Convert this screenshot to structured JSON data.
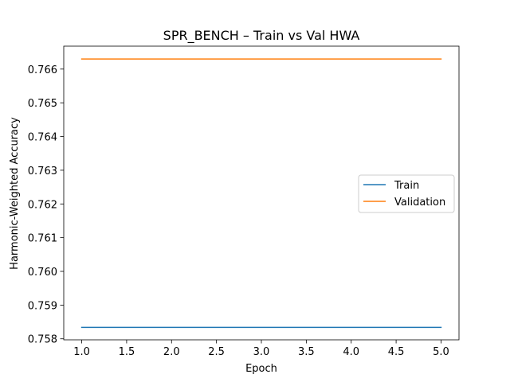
{
  "chart_data": {
    "type": "line",
    "title": "SPR_BENCH – Train vs Val HWA",
    "xlabel": "Epoch",
    "ylabel": "Harmonic-Weighted Accuracy",
    "x": [
      1,
      2,
      3,
      4,
      5
    ],
    "xlim": [
      0.8,
      5.2
    ],
    "ylim": [
      0.75797,
      0.76668
    ],
    "x_ticks": [
      1.0,
      1.5,
      2.0,
      2.5,
      3.0,
      3.5,
      4.0,
      4.5,
      5.0
    ],
    "x_tick_labels": [
      "1.0",
      "1.5",
      "2.0",
      "2.5",
      "3.0",
      "3.5",
      "4.0",
      "4.5",
      "5.0"
    ],
    "y_ticks": [
      0.758,
      0.759,
      0.76,
      0.761,
      0.762,
      0.763,
      0.764,
      0.765,
      0.766
    ],
    "y_tick_labels": [
      "0.758",
      "0.759",
      "0.760",
      "0.761",
      "0.762",
      "0.763",
      "0.764",
      "0.765",
      "0.766"
    ],
    "grid": false,
    "legend_position": "center-right",
    "series": [
      {
        "name": "Train",
        "color": "#1f77b4",
        "values": [
          0.75834,
          0.75834,
          0.75834,
          0.75834,
          0.75834
        ]
      },
      {
        "name": "Validation",
        "color": "#ff7f0e",
        "values": [
          0.7663,
          0.7663,
          0.7663,
          0.7663,
          0.7663
        ]
      }
    ]
  }
}
